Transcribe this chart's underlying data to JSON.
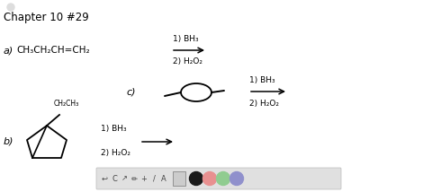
{
  "bg_color": "#ffffff",
  "title": "Chapter 10 #29",
  "title_fontsize": 8.5,
  "a_label": "a)",
  "a_formula": "CH₃CH₂CH=CH₂",
  "a_reagent1": "1) BH₃",
  "a_reagent2": "2) H₂O₂",
  "c_label": "c)",
  "c_reagent1": "1) BH₃",
  "c_reagent2": "2) H₂O₂",
  "b_label": "b)",
  "b_sub": "CH₂CH₃",
  "b_reagent1": "1) BH₃",
  "b_reagent2": "2) H₂O₂",
  "toolbar_icons": [
    "↩",
    "C",
    "↗",
    "✎",
    "+",
    "/",
    "A"
  ],
  "circle_colors": [
    "#1a1a1a",
    "#e89090",
    "#90cc90",
    "#9090cc"
  ]
}
